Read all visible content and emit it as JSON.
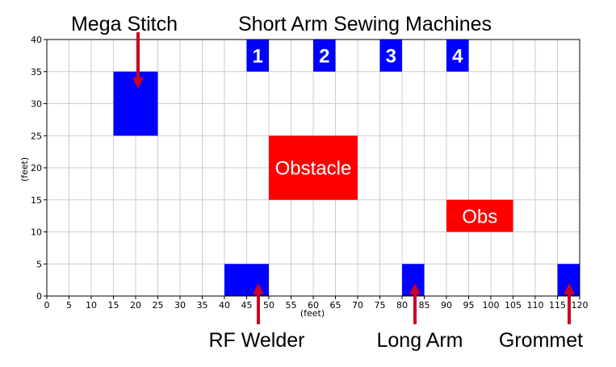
{
  "chart_data": {
    "type": "floor-layout",
    "xlabel": "(feet)",
    "ylabel": "(feet)",
    "xlim": [
      0,
      120
    ],
    "ylim": [
      0,
      40
    ],
    "x_ticks": [
      0,
      5,
      10,
      15,
      20,
      25,
      30,
      35,
      40,
      45,
      50,
      55,
      60,
      65,
      70,
      75,
      80,
      85,
      90,
      95,
      100,
      105,
      110,
      115,
      120
    ],
    "y_ticks": [
      0,
      5,
      10,
      15,
      20,
      25,
      30,
      35,
      40
    ],
    "grid": true,
    "colors": {
      "machine": "#0000ff",
      "obstacle": "#ff0000",
      "arrow": "#cc0022",
      "grid": "#cccccc"
    },
    "rects": [
      {
        "kind": "machine",
        "x0": 15,
        "x1": 25,
        "y0": 25,
        "y1": 35,
        "label": ""
      },
      {
        "kind": "machine",
        "x0": 45,
        "x1": 50,
        "y0": 35,
        "y1": 40,
        "label": "1"
      },
      {
        "kind": "machine",
        "x0": 60,
        "x1": 65,
        "y0": 35,
        "y1": 40,
        "label": "2"
      },
      {
        "kind": "machine",
        "x0": 75,
        "x1": 80,
        "y0": 35,
        "y1": 40,
        "label": "3"
      },
      {
        "kind": "machine",
        "x0": 90,
        "x1": 95,
        "y0": 35,
        "y1": 40,
        "label": "4"
      },
      {
        "kind": "obstacle",
        "x0": 50,
        "x1": 70,
        "y0": 15,
        "y1": 25,
        "label": "Obstacle"
      },
      {
        "kind": "obstacle",
        "x0": 90,
        "x1": 105,
        "y0": 10,
        "y1": 15,
        "label": "Obs"
      },
      {
        "kind": "machine",
        "x0": 40,
        "x1": 50,
        "y0": 0,
        "y1": 5,
        "label": ""
      },
      {
        "kind": "machine",
        "x0": 80,
        "x1": 85,
        "y0": 0,
        "y1": 5,
        "label": ""
      },
      {
        "kind": "machine",
        "x0": 115,
        "x1": 120,
        "y0": 0,
        "y1": 5,
        "label": ""
      }
    ]
  },
  "annotations": {
    "mega_stitch": "Mega Stitch",
    "short_arm": "Short Arm Sewing Machines",
    "rf_welder": "RF Welder",
    "long_arm": "Long Arm",
    "grommet": "Grommet"
  }
}
